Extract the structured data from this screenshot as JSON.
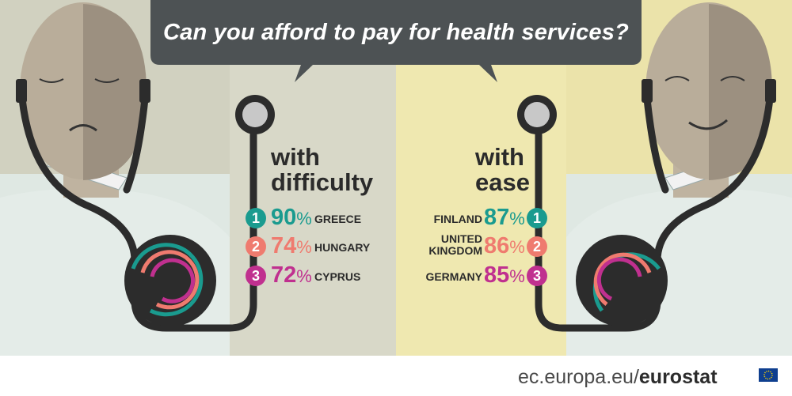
{
  "title": "Can you afford to pay for health services?",
  "difficulty": {
    "heading_line1": "with",
    "heading_line2": "difficulty",
    "items": [
      {
        "rank": "1",
        "percent": "90",
        "unit": "%",
        "country": "GREECE",
        "color": "#1a9b8f"
      },
      {
        "rank": "2",
        "percent": "74",
        "unit": "%",
        "country": "HUNGARY",
        "color": "#ef7b6f"
      },
      {
        "rank": "3",
        "percent": "72",
        "unit": "%",
        "country": "CYPRUS",
        "color": "#c0308f"
      }
    ]
  },
  "ease": {
    "heading_line1": "with",
    "heading_line2": "ease",
    "items": [
      {
        "rank": "1",
        "percent": "87",
        "unit": "%",
        "country": "FINLAND",
        "color": "#1a9b8f"
      },
      {
        "rank": "2",
        "percent": "86",
        "unit": "%",
        "country_line1": "UNITED",
        "country_line2": "KINGDOM",
        "color": "#ef7b6f"
      },
      {
        "rank": "3",
        "percent": "85",
        "unit": "%",
        "country": "GERMANY",
        "color": "#c0308f"
      }
    ]
  },
  "footer": {
    "domain": "ec.europa.eu/",
    "brand": "eurostat"
  },
  "colors": {
    "bubble": "#4d5254",
    "left_bg": "#d9d9c8",
    "right_bg": "#efe7ad",
    "stethoscope": "#2c2c2c"
  }
}
